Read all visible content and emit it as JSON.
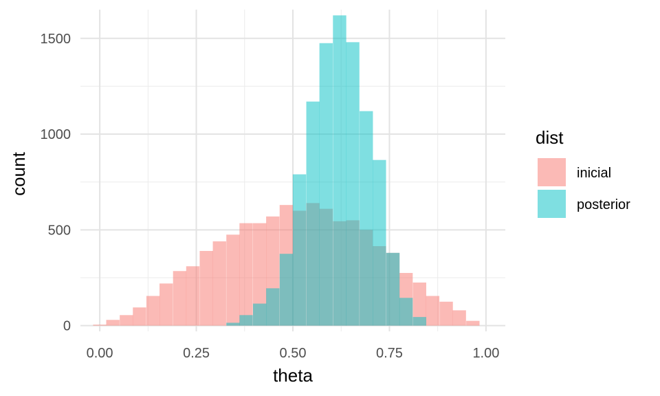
{
  "chart_data": {
    "type": "histogram",
    "xlabel": "theta",
    "ylabel": "count",
    "x_ticks": [
      "0.00",
      "0.25",
      "0.50",
      "0.75",
      "1.00"
    ],
    "x_tick_values": [
      0,
      0.25,
      0.5,
      0.75,
      1.0
    ],
    "y_ticks": [
      "0",
      "500",
      "1000",
      "1500"
    ],
    "y_tick_values": [
      0,
      500,
      1000,
      1500
    ],
    "xlim": [
      -0.05,
      1.05
    ],
    "ylim": [
      -30,
      1650
    ],
    "bin_width": 0.0345,
    "overlay": true,
    "opacity": 0.5,
    "legend": {
      "title": "dist",
      "placement": "right"
    },
    "series": [
      {
        "name": "inicial",
        "color": "#F8766D",
        "bins": [
          [
            0.0,
            5
          ],
          [
            0.034,
            30
          ],
          [
            0.069,
            55
          ],
          [
            0.103,
            95
          ],
          [
            0.138,
            155
          ],
          [
            0.172,
            220
          ],
          [
            0.207,
            285
          ],
          [
            0.241,
            310
          ],
          [
            0.276,
            390
          ],
          [
            0.31,
            440
          ],
          [
            0.345,
            475
          ],
          [
            0.379,
            535
          ],
          [
            0.414,
            535
          ],
          [
            0.448,
            570
          ],
          [
            0.483,
            630
          ],
          [
            0.517,
            600
          ],
          [
            0.552,
            640
          ],
          [
            0.586,
            610
          ],
          [
            0.621,
            545
          ],
          [
            0.655,
            550
          ],
          [
            0.69,
            500
          ],
          [
            0.724,
            415
          ],
          [
            0.759,
            380
          ],
          [
            0.793,
            275
          ],
          [
            0.828,
            225
          ],
          [
            0.862,
            155
          ],
          [
            0.897,
            125
          ],
          [
            0.931,
            80
          ],
          [
            0.966,
            25
          ]
        ]
      },
      {
        "name": "posterior",
        "color": "#00BFC4",
        "bins": [
          [
            0.345,
            15
          ],
          [
            0.379,
            55
          ],
          [
            0.414,
            115
          ],
          [
            0.448,
            195
          ],
          [
            0.483,
            375
          ],
          [
            0.517,
            790
          ],
          [
            0.552,
            1170
          ],
          [
            0.586,
            1475
          ],
          [
            0.621,
            1620
          ],
          [
            0.655,
            1480
          ],
          [
            0.69,
            1120
          ],
          [
            0.724,
            865
          ],
          [
            0.759,
            380
          ],
          [
            0.793,
            145
          ],
          [
            0.828,
            45
          ]
        ]
      }
    ]
  }
}
